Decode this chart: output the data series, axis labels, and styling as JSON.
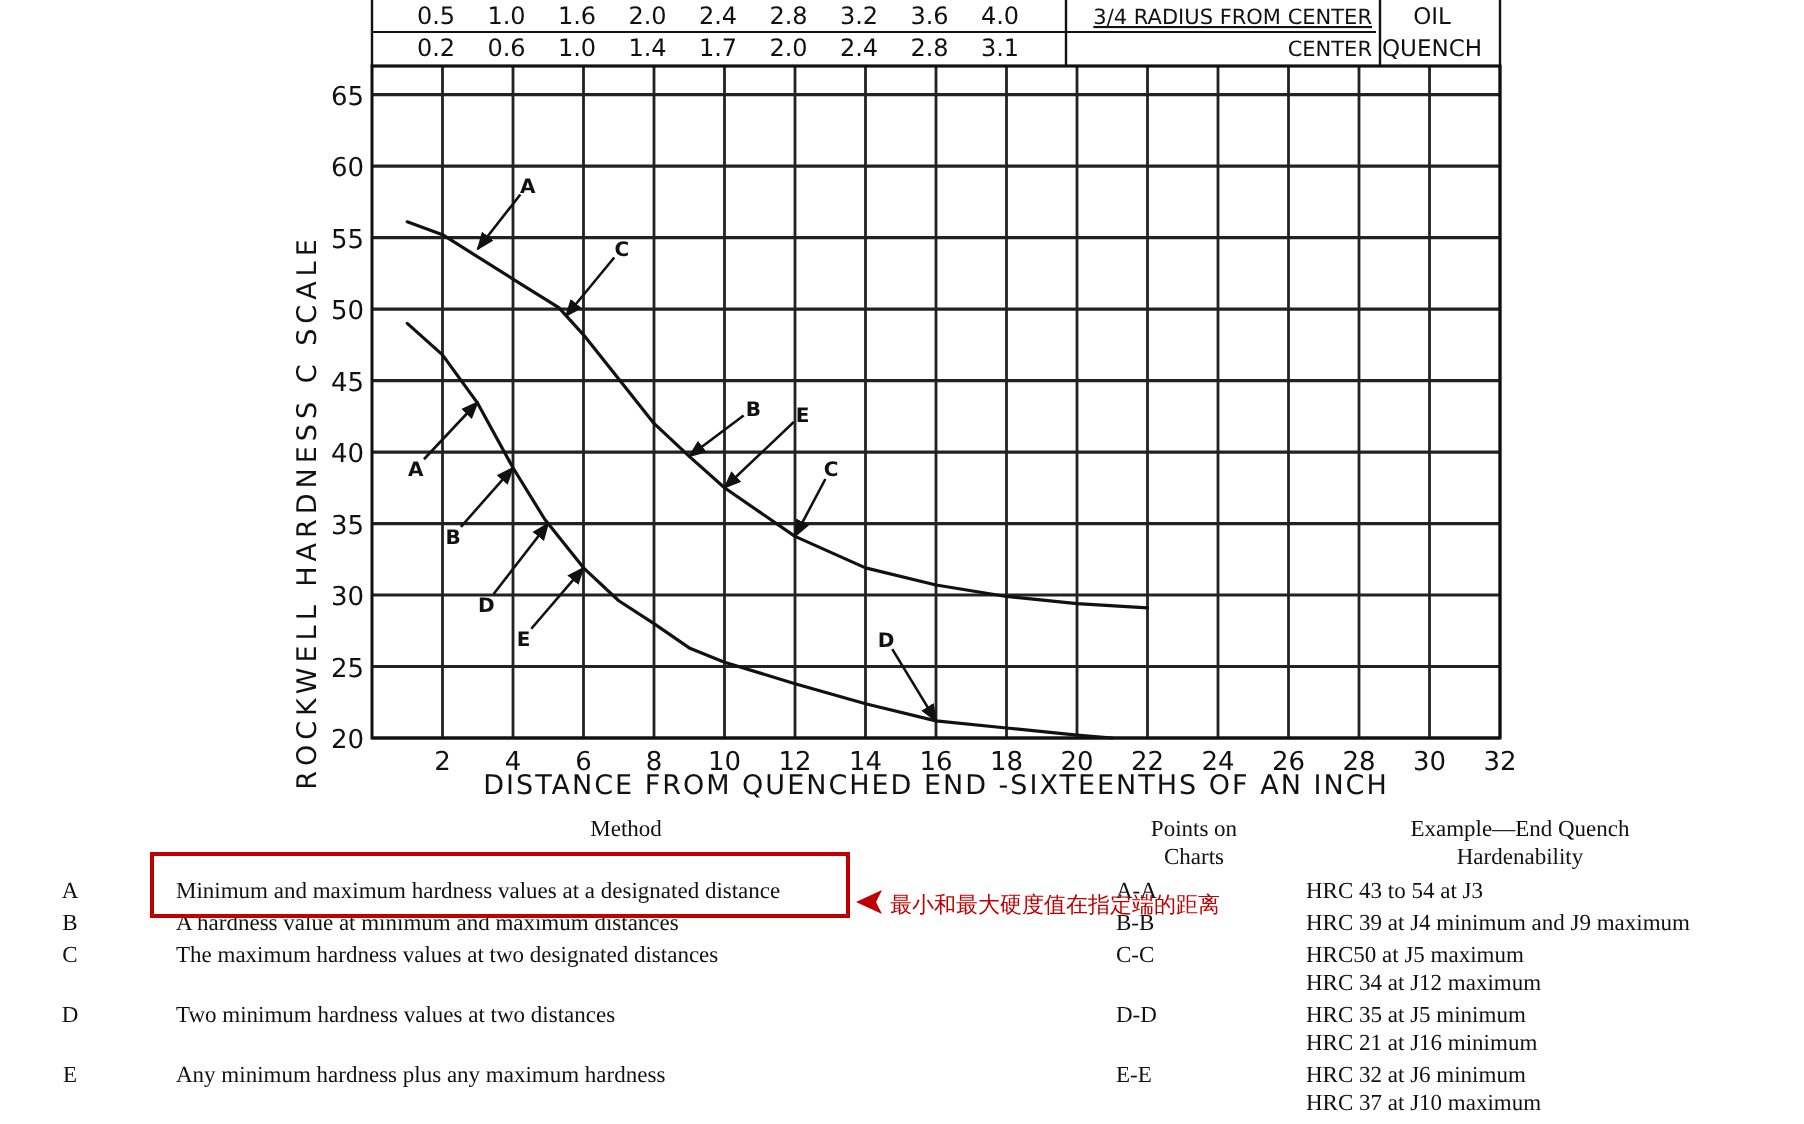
{
  "chart_data": [
    {
      "type": "line",
      "xlabel": "DISTANCE FROM QUENCHED END -SIXTEENTHS OF AN INCH",
      "ylabel": "ROCKWELL HARDNESS C SCALE",
      "xlim": [
        0,
        32
      ],
      "xticks": [
        2,
        4,
        6,
        8,
        10,
        12,
        14,
        16,
        18,
        20,
        22,
        24,
        26,
        28,
        30,
        32
      ],
      "ylim": [
        20,
        67
      ],
      "yticks": [
        20,
        25,
        30,
        35,
        40,
        45,
        50,
        55,
        60,
        65
      ],
      "grid": true,
      "marker": "none",
      "line_style": "solid",
      "series": [
        {
          "color": "#111111",
          "x": [
            1,
            2,
            4,
            5.3,
            6,
            7,
            8,
            9,
            10,
            12,
            14,
            16,
            18,
            20,
            22
          ],
          "values": [
            56.1,
            55.2,
            52.1,
            50.1,
            48.2,
            45.1,
            42,
            39.7,
            37.5,
            34.1,
            31.9,
            30.7,
            29.9,
            29.4,
            29.1
          ]
        },
        {
          "color": "#111111",
          "x": [
            1,
            2,
            3,
            4,
            4.9,
            6,
            7,
            8,
            9,
            10,
            12,
            14,
            16,
            18,
            20,
            21
          ],
          "values": [
            49,
            46.8,
            43.4,
            38.9,
            35.3,
            31.9,
            29.6,
            28,
            26.3,
            25.3,
            23.8,
            22.4,
            21.2,
            20.7,
            20.2,
            20
          ]
        }
      ],
      "annotations": [
        {
          "text": "A",
          "x": 3,
          "y": 54.2
        },
        {
          "text": "A",
          "x": 3,
          "y": 43.5
        },
        {
          "text": "C",
          "x": 5.5,
          "y": 49.5
        },
        {
          "text": "B",
          "x": 4,
          "y": 38.9
        },
        {
          "text": "D",
          "x": 5,
          "y": 35
        },
        {
          "text": "E",
          "x": 6,
          "y": 31.9
        },
        {
          "text": "B",
          "x": 9,
          "y": 39.7
        },
        {
          "text": "E",
          "x": 10,
          "y": 37.5
        },
        {
          "text": "C",
          "x": 12,
          "y": 34.1
        },
        {
          "text": "D",
          "x": 16,
          "y": 21.2
        },
        "0.5",
        "1.0",
        "1.6",
        "2.0",
        "2.4",
        "2.8",
        "3.2",
        "3.6",
        "4.0",
        "0.2",
        "0.6",
        "1.0",
        "1.4",
        "1.7",
        "2.0",
        "2.4",
        "2.8",
        "3.1",
        "3/4 RADIUS FROM CENTER",
        "CENTER",
        "OIL",
        "QUENCH"
      ]
    },
    {
      "type": "other",
      "annotations": [
        "Method",
        "Points on",
        "Charts",
        "Example—End Quench",
        "Hardenability",
        "A",
        "Minimum and maximum hardness values at a designated distance",
        "A-A",
        "HRC 43 to 54 at J3",
        "B",
        "A hardness value at minimum and maximum distances",
        "B-B",
        "HRC 39 at J4 minimum and J9 maximum",
        "C",
        "The maximum hardness values at two designated distances",
        "C-C",
        "HRC50 at J5 maximum",
        "HRC 34 at J12 maximum",
        "D",
        "Two minimum hardness values at two distances",
        "D-D",
        "HRC 35 at J5 minimum",
        "HRC 21 at J16 minimum",
        "E",
        "Any minimum hardness plus any maximum hardness",
        "E-E",
        "HRC 32 at J6 minimum",
        "HRC 37 at J10 maximum",
        "最小和最大硬度值在指定端的距离"
      ]
    }
  ]
}
